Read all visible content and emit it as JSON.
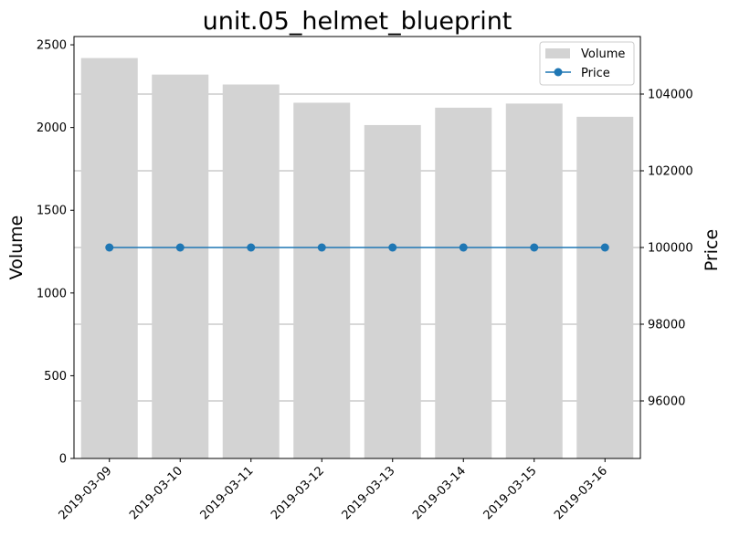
{
  "chart_data": {
    "type": "bar",
    "title": "unit.05_helmet_blueprint",
    "xlabel": "",
    "ylabel": "Volume",
    "y2label": "Price",
    "categories": [
      "2019-03-09",
      "2019-03-10",
      "2019-03-11",
      "2019-03-12",
      "2019-03-13",
      "2019-03-14",
      "2019-03-15",
      "2019-03-16"
    ],
    "series": [
      {
        "name": "Volume",
        "type": "bar",
        "axis": "left",
        "color": "#d3d3d3",
        "values": [
          2420,
          2320,
          2260,
          2150,
          2015,
          2120,
          2145,
          2065
        ]
      },
      {
        "name": "Price",
        "type": "line",
        "axis": "right",
        "color": "#1f77b4",
        "marker": "circle",
        "values": [
          100000,
          100000,
          100000,
          100000,
          100000,
          100000,
          100000,
          100000
        ]
      }
    ],
    "ylim": [
      0,
      2550
    ],
    "y2lim": [
      94500,
      105500
    ],
    "yticks": [
      0,
      500,
      1000,
      1500,
      2000,
      2500
    ],
    "y2ticks": [
      96000,
      98000,
      100000,
      102000,
      104000
    ],
    "grid": "horizontal lines at right-axis ticks",
    "legend_position": "top-right",
    "legend": [
      "Volume",
      "Price"
    ]
  }
}
